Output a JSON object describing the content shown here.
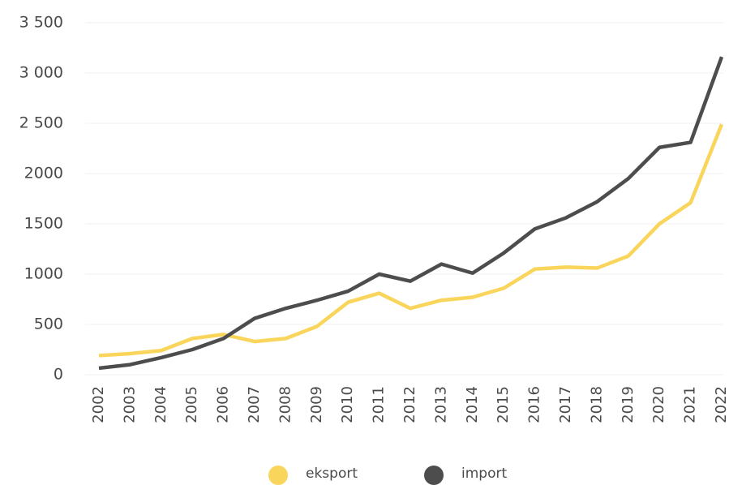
{
  "chart_data": {
    "type": "line",
    "categories": [
      "2002",
      "2003",
      "2004",
      "2005",
      "2006",
      "2007",
      "2008",
      "2009",
      "2010",
      "2011",
      "2012",
      "2013",
      "2014",
      "2015",
      "2016",
      "2017",
      "2018",
      "2019",
      "2020",
      "2021",
      "2022"
    ],
    "series": [
      {
        "name": "eksport",
        "color": "#f9d55b",
        "values": [
          190,
          210,
          240,
          360,
          400,
          330,
          360,
          480,
          720,
          810,
          660,
          740,
          770,
          860,
          1050,
          1070,
          1060,
          1180,
          1500,
          1710,
          2490
        ]
      },
      {
        "name": "import",
        "color": "#4d4d4d",
        "values": [
          65,
          100,
          170,
          250,
          360,
          560,
          660,
          740,
          830,
          1000,
          930,
          1100,
          1010,
          1210,
          1450,
          1560,
          1720,
          1950,
          2260,
          2310,
          3160
        ]
      }
    ],
    "ylim": [
      0,
      3500
    ],
    "yticks": [
      0,
      500,
      1000,
      1500,
      2000,
      {
        "value": 2500,
        "label": "2 500"
      },
      {
        "value": 3000,
        "label": "3 000"
      },
      {
        "value": 3500,
        "label": "3 500"
      }
    ],
    "grid": true,
    "legend": "bottom"
  }
}
